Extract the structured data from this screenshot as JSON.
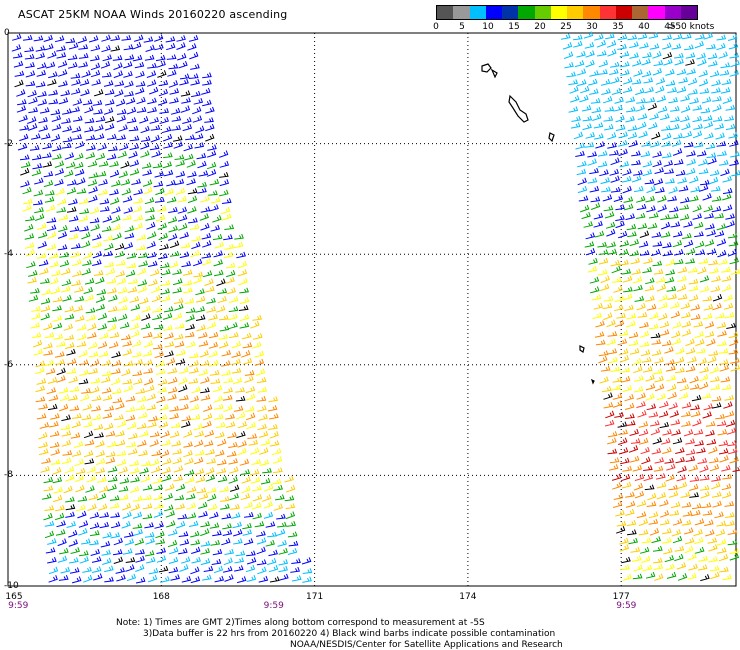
{
  "title": "ASCAT 25KM NOAA Winds 20160220 ascending",
  "legend": {
    "colors": [
      "#555555",
      "#999999",
      "#00bfff",
      "#0000ff",
      "#0033aa",
      "#00a800",
      "#66cc00",
      "#ffff00",
      "#ffcc00",
      "#ff8800",
      "#ff3333",
      "#cc0000",
      "#aa6633",
      "#ff00ff",
      "#9900cc",
      "#660099"
    ],
    "labels": [
      {
        "text": "0",
        "value": 0
      },
      {
        "text": "5",
        "value": 5
      },
      {
        "text": "10",
        "value": 10
      },
      {
        "text": "15",
        "value": 15
      },
      {
        "text": "20",
        "value": 20
      },
      {
        "text": "25",
        "value": 25
      },
      {
        "text": "30",
        "value": 30
      },
      {
        "text": "35",
        "value": 35
      },
      {
        "text": "40",
        "value": 40
      },
      {
        "text": "45",
        "value": 45
      },
      {
        "text": ">50 knots",
        "value": 51
      }
    ]
  },
  "axes": {
    "lat_labels": [
      {
        "text": "0",
        "lat": 0
      },
      {
        "text": "-2",
        "lat": -2
      },
      {
        "text": "-4",
        "lat": -4
      },
      {
        "text": "-6",
        "lat": -6
      },
      {
        "text": "-8",
        "lat": -8
      },
      {
        "text": "-10",
        "lat": -10
      }
    ],
    "lon_labels": [
      {
        "text": "165",
        "lon": 165
      },
      {
        "text": "168",
        "lon": 168
      },
      {
        "text": "171",
        "lon": 171
      },
      {
        "text": "174",
        "lon": 174
      },
      {
        "text": "177",
        "lon": 177
      }
    ],
    "lat_range": [
      -10,
      0
    ],
    "lon_range": [
      165,
      179.4
    ]
  },
  "pass_times": [
    {
      "text": "9:59",
      "lon": 165.2
    },
    {
      "text": "9:59",
      "lon": 170.2
    },
    {
      "text": "9:59",
      "lon": 177.1
    }
  ],
  "notes": [
    "Note: 1) Times are GMT 2)Times along bottom correspond to measurement at -5S",
    "3)Data buffer is 22 hrs from 20160220 4) Black wind barbs indicate possible contamination",
    "NOAA/NESDIS/Center for Satellite Applications and Research"
  ]
}
